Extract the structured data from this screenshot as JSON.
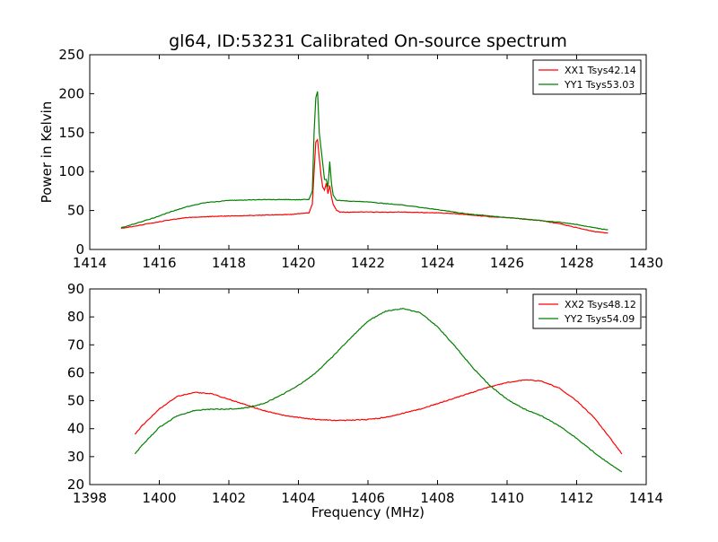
{
  "figure": {
    "title": "gl64, ID:53231 Calibrated On-source spectrum",
    "xlabel": "Frequency (MHz)"
  },
  "chart_data": [
    {
      "type": "line",
      "title": "gl64, ID:53231 Calibrated On-source spectrum",
      "xlabel": "",
      "ylabel": "Power in Kelvin",
      "xlim": [
        1414,
        1430
      ],
      "ylim": [
        0,
        250
      ],
      "xticks": [
        1414,
        1416,
        1418,
        1420,
        1422,
        1424,
        1426,
        1428,
        1430
      ],
      "yticks": [
        0,
        50,
        100,
        150,
        200,
        250
      ],
      "grid": false,
      "legend_position": "top-right",
      "series": [
        {
          "name": "XX1 Tsys42.14",
          "color": "#ff0000",
          "x": [
            1414.9,
            1415.3,
            1415.8,
            1416.3,
            1416.8,
            1417.3,
            1418.0,
            1419.0,
            1419.8,
            1420.3,
            1420.4,
            1420.45,
            1420.5,
            1420.55,
            1420.6,
            1420.65,
            1420.7,
            1420.75,
            1420.8,
            1420.85,
            1420.9,
            1420.95,
            1421.0,
            1421.1,
            1421.2,
            1421.5,
            1422.0,
            1422.5,
            1423.0,
            1423.5,
            1424.0,
            1424.5,
            1425.0,
            1425.5,
            1426.0,
            1426.5,
            1427.0,
            1427.5,
            1428.0,
            1428.5,
            1428.9
          ],
          "values": [
            27,
            30,
            34,
            38,
            41,
            42,
            43,
            44,
            45,
            47,
            58,
            100,
            138,
            141,
            118,
            95,
            80,
            76,
            85,
            72,
            82,
            68,
            58,
            50,
            48,
            48,
            48,
            48,
            48,
            47.5,
            47,
            46,
            44,
            42,
            41,
            39,
            37,
            33,
            28,
            23,
            21
          ]
        },
        {
          "name": "YY1 Tsys53.03",
          "color": "#008000",
          "x": [
            1414.9,
            1415.3,
            1415.8,
            1416.3,
            1416.8,
            1417.3,
            1418.0,
            1419.0,
            1419.8,
            1420.3,
            1420.4,
            1420.45,
            1420.5,
            1420.55,
            1420.6,
            1420.65,
            1420.7,
            1420.75,
            1420.8,
            1420.85,
            1420.9,
            1420.95,
            1421.0,
            1421.1,
            1421.2,
            1421.5,
            1422.0,
            1422.5,
            1423.0,
            1423.5,
            1424.0,
            1424.5,
            1425.0,
            1425.5,
            1426.0,
            1426.5,
            1427.0,
            1427.5,
            1428.0,
            1428.5,
            1428.9
          ],
          "values": [
            28,
            33,
            40,
            48,
            55,
            60,
            63,
            64,
            64,
            64,
            75,
            150,
            195,
            203,
            150,
            130,
            110,
            90,
            90,
            80,
            113,
            85,
            70,
            63,
            63,
            62,
            61,
            59,
            57,
            54,
            51,
            48,
            45,
            43,
            41,
            39,
            37,
            35,
            32,
            28,
            25
          ]
        }
      ]
    },
    {
      "type": "line",
      "title": "",
      "xlabel": "Frequency (MHz)",
      "ylabel": "",
      "xlim": [
        1398,
        1414
      ],
      "ylim": [
        20,
        90
      ],
      "xticks": [
        1398,
        1400,
        1402,
        1404,
        1406,
        1408,
        1410,
        1412,
        1414
      ],
      "yticks": [
        20,
        30,
        40,
        50,
        60,
        70,
        80,
        90
      ],
      "grid": false,
      "legend_position": "top-right",
      "series": [
        {
          "name": "XX2 Tsys48.12",
          "color": "#ff0000",
          "x": [
            1399.3,
            1399.5,
            1400.0,
            1400.5,
            1401.0,
            1401.5,
            1402.0,
            1402.5,
            1403.0,
            1403.5,
            1404.0,
            1404.5,
            1405.0,
            1405.5,
            1406.0,
            1406.5,
            1407.0,
            1407.5,
            1408.0,
            1408.5,
            1409.0,
            1409.5,
            1410.0,
            1410.5,
            1411.0,
            1411.5,
            1412.0,
            1412.5,
            1413.0,
            1413.3
          ],
          "values": [
            38,
            41,
            47,
            51.5,
            53,
            52.5,
            50.5,
            48.5,
            46.5,
            45,
            44,
            43.3,
            43,
            43,
            43.3,
            44,
            45.5,
            47,
            49,
            51,
            53,
            55,
            56.5,
            57.5,
            57,
            54.5,
            50,
            44,
            36,
            31
          ]
        },
        {
          "name": "YY2 Tsys54.09",
          "color": "#008000",
          "x": [
            1399.3,
            1399.5,
            1400.0,
            1400.5,
            1401.0,
            1401.5,
            1402.0,
            1402.5,
            1403.0,
            1403.5,
            1404.0,
            1404.5,
            1405.0,
            1405.5,
            1406.0,
            1406.5,
            1407.0,
            1407.5,
            1408.0,
            1408.5,
            1409.0,
            1409.5,
            1410.0,
            1410.5,
            1411.0,
            1411.5,
            1412.0,
            1412.5,
            1413.0,
            1413.3
          ],
          "values": [
            31,
            34,
            40.5,
            44.5,
            46.5,
            47,
            47,
            47.5,
            49,
            52,
            55.5,
            60,
            66,
            72.5,
            78.5,
            82,
            83,
            81.5,
            76.5,
            69.5,
            62,
            55.5,
            50.5,
            47,
            44.5,
            41,
            36.5,
            31.5,
            27,
            24.5
          ]
        }
      ]
    }
  ]
}
